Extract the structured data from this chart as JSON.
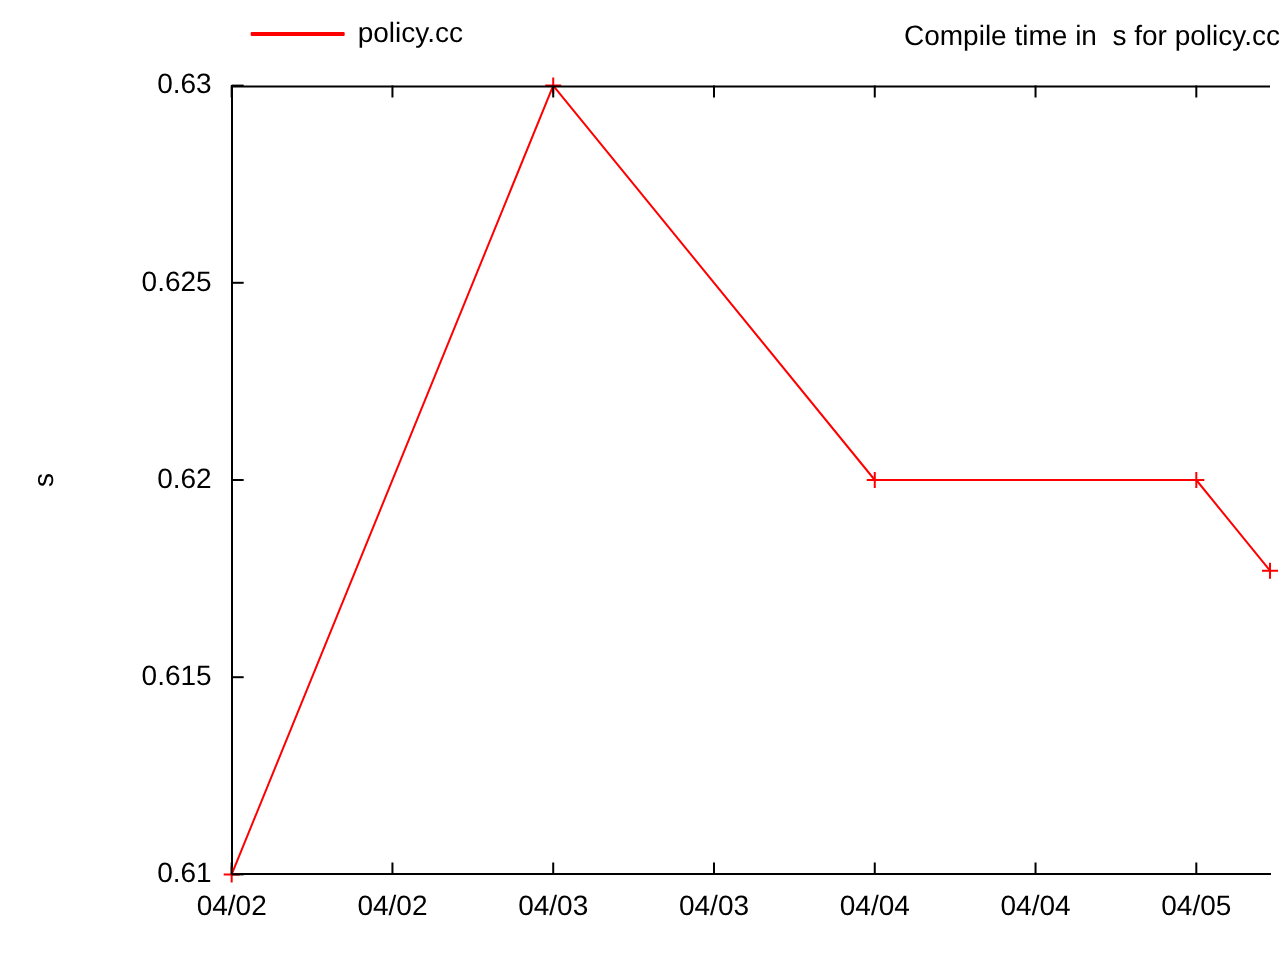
{
  "chart_data": {
    "type": "line",
    "title": "Compile time in  s for policy.cc",
    "ylabel": "s",
    "x": [
      "--04-02T00:00",
      "--04-03T00:00",
      "--04-04T00:00",
      "--04-05T00:00",
      "--04-05T05:30"
    ],
    "series": [
      {
        "name": "policy.cc",
        "color": "#ff0000",
        "values": [
          0.61,
          0.63,
          0.62,
          0.62,
          0.6177
        ]
      }
    ],
    "xlim": [
      "--04-02T00:00",
      "--04-05T05:30"
    ],
    "xticks": [
      {
        "value": "--04-02T00:00",
        "label": "04/02"
      },
      {
        "value": "--04-02T12:00",
        "label": "04/02"
      },
      {
        "value": "--04-03T00:00",
        "label": "04/03"
      },
      {
        "value": "--04-03T12:00",
        "label": "04/03"
      },
      {
        "value": "--04-04T00:00",
        "label": "04/04"
      },
      {
        "value": "--04-04T12:00",
        "label": "04/04"
      },
      {
        "value": "--04-05T00:00",
        "label": "04/05"
      }
    ],
    "ylim": [
      0.61,
      0.63
    ],
    "yticks": [
      0.61,
      0.615,
      0.62,
      0.625,
      0.63
    ],
    "grid": false,
    "legend": "top left",
    "marker": "cross",
    "line_style": "solid"
  }
}
